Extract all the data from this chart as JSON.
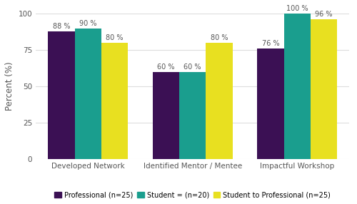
{
  "categories": [
    "Developed Network",
    "Identified Mentor / Mentee",
    "Impactful Workshop"
  ],
  "series": [
    {
      "label": "Professional (n=25)",
      "values": [
        88,
        60,
        76
      ],
      "color": "#3b1054"
    },
    {
      "label": "Student = (n=20)",
      "values": [
        90,
        60,
        100
      ],
      "color": "#1a9e8e"
    },
    {
      "label": "Student to Professional (n=25)",
      "values": [
        80,
        80,
        96
      ],
      "color": "#e8e020"
    }
  ],
  "ylabel": "Percent (%)",
  "ylim": [
    0,
    100
  ],
  "yticks": [
    0,
    25,
    50,
    75,
    100
  ],
  "bar_width": 0.28,
  "background_color": "#ffffff",
  "grid_color": "#dddddd",
  "label_fontsize": 7.0,
  "axis_fontsize": 8.5,
  "tick_fontsize": 7.5,
  "legend_fontsize": 7.0
}
